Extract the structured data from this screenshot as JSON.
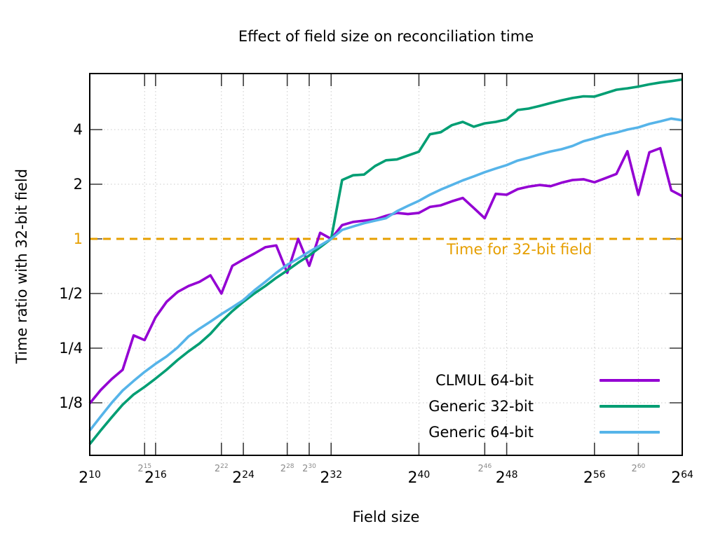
{
  "chart_data": {
    "type": "line",
    "title": "Effect of field size on reconciliation time",
    "xlabel": "Field size",
    "ylabel": "Time ratio with 32-bit field",
    "x_scale": "log2",
    "y_scale": "log2",
    "x_axis": {
      "base": "2",
      "range_exponents": [
        10,
        64
      ],
      "major_exponents": [
        10,
        16,
        24,
        32,
        40,
        48,
        56,
        64
      ],
      "minor_exponents": [
        15,
        22,
        28,
        30,
        46,
        60
      ]
    },
    "y_axis": {
      "range": [
        0.065,
        8.1
      ],
      "ticks": [
        {
          "label": "4",
          "value": 4,
          "accent": false
        },
        {
          "label": "2",
          "value": 2,
          "accent": false
        },
        {
          "label": "1",
          "value": 1,
          "accent": true
        },
        {
          "label": "1/2",
          "value": 0.5,
          "accent": false
        },
        {
          "label": "1/4",
          "value": 0.25,
          "accent": false
        },
        {
          "label": "1/8",
          "value": 0.125,
          "accent": false
        }
      ]
    },
    "grid": true,
    "reference_line": {
      "y": 1,
      "label": "Time for 32-bit field",
      "color": "#E69F00",
      "style": "dashed"
    },
    "x_exponents": [
      10,
      11,
      12,
      13,
      14,
      15,
      16,
      17,
      18,
      19,
      20,
      21,
      22,
      23,
      24,
      25,
      26,
      27,
      28,
      29,
      30,
      31,
      32,
      33,
      34,
      35,
      36,
      37,
      38,
      39,
      40,
      41,
      42,
      43,
      44,
      45,
      46,
      47,
      48,
      49,
      50,
      51,
      52,
      53,
      54,
      55,
      56,
      57,
      58,
      59,
      60,
      61,
      62,
      63,
      64
    ],
    "series": [
      {
        "name": "CLMUL 64-bit",
        "color": "#9400D3",
        "values": [
          0.124,
          0.147,
          0.169,
          0.19,
          0.294,
          0.277,
          0.37,
          0.45,
          0.51,
          0.55,
          0.58,
          0.63,
          0.5,
          0.71,
          0.77,
          0.83,
          0.9,
          0.92,
          0.65,
          1.0,
          0.71,
          1.08,
          1.0,
          1.19,
          1.24,
          1.26,
          1.28,
          1.34,
          1.39,
          1.37,
          1.39,
          1.5,
          1.53,
          1.61,
          1.68,
          1.48,
          1.3,
          1.77,
          1.75,
          1.88,
          1.94,
          1.98,
          1.95,
          2.04,
          2.11,
          2.13,
          2.05,
          2.16,
          2.28,
          3.04,
          1.75,
          3.0,
          3.16,
          1.85,
          1.72
        ]
      },
      {
        "name": "Generic 32-bit",
        "color": "#009E73",
        "values": [
          0.074,
          0.088,
          0.104,
          0.122,
          0.139,
          0.153,
          0.17,
          0.19,
          0.215,
          0.24,
          0.265,
          0.3,
          0.35,
          0.4,
          0.45,
          0.5,
          0.55,
          0.61,
          0.67,
          0.74,
          0.81,
          0.9,
          1.0,
          2.11,
          2.24,
          2.26,
          2.52,
          2.71,
          2.74,
          2.88,
          3.02,
          3.77,
          3.87,
          4.23,
          4.41,
          4.15,
          4.33,
          4.41,
          4.55,
          5.13,
          5.22,
          5.4,
          5.6,
          5.8,
          5.97,
          6.1,
          6.08,
          6.35,
          6.63,
          6.75,
          6.9,
          7.1,
          7.27,
          7.4,
          7.55
        ]
      },
      {
        "name": "Generic 64-bit",
        "color": "#56B4E9",
        "values": [
          0.088,
          0.105,
          0.125,
          0.146,
          0.165,
          0.185,
          0.205,
          0.225,
          0.252,
          0.29,
          0.32,
          0.35,
          0.385,
          0.42,
          0.46,
          0.52,
          0.58,
          0.65,
          0.72,
          0.78,
          0.85,
          0.92,
          1.0,
          1.12,
          1.17,
          1.22,
          1.26,
          1.3,
          1.42,
          1.52,
          1.62,
          1.75,
          1.87,
          1.98,
          2.1,
          2.21,
          2.33,
          2.44,
          2.55,
          2.7,
          2.8,
          2.92,
          3.03,
          3.12,
          3.25,
          3.45,
          3.58,
          3.74,
          3.85,
          4.0,
          4.11,
          4.3,
          4.44,
          4.6,
          4.5
        ]
      }
    ],
    "legend_position": "inside-bottom-right"
  },
  "legend": {
    "entries": [
      {
        "label": "CLMUL 64-bit",
        "color": "#9400D3"
      },
      {
        "label": "Generic 32-bit",
        "color": "#009E73"
      },
      {
        "label": "Generic 64-bit",
        "color": "#56B4E9"
      }
    ]
  },
  "annotation": {
    "label": "Time for 32-bit field",
    "color": "#E69F00"
  },
  "colors": {
    "clmul_64": "#9400D3",
    "generic_32": "#009E73",
    "generic_64": "#56B4E9",
    "reference": "#E69F00",
    "grid": "#c9c9c9",
    "minor_tick_text": "#8c8c8c"
  }
}
